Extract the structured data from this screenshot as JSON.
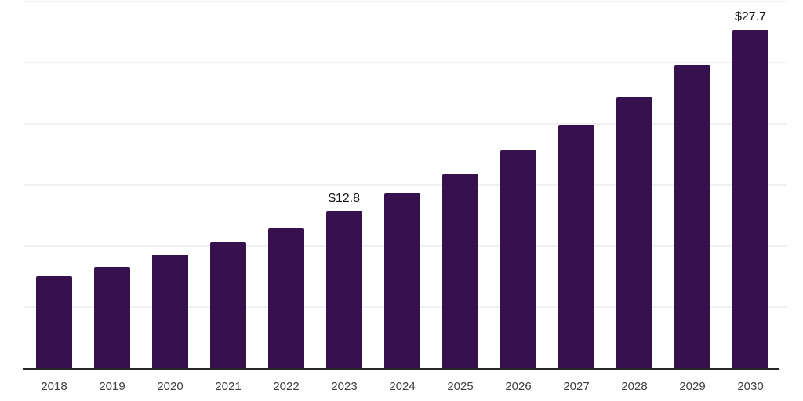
{
  "chart_data": {
    "type": "bar",
    "title": "",
    "categories": [
      "2018",
      "2019",
      "2020",
      "2021",
      "2022",
      "2023",
      "2024",
      "2025",
      "2026",
      "2027",
      "2028",
      "2029",
      "2030"
    ],
    "values": [
      7.5,
      8.3,
      9.3,
      10.3,
      11.5,
      12.8,
      14.3,
      15.9,
      17.8,
      19.9,
      22.2,
      24.8,
      27.7
    ],
    "value_labels": {
      "2023": "$12.8",
      "2030": "$27.7"
    },
    "ylim": [
      0,
      30
    ],
    "gridline_values": [
      5,
      10,
      15,
      20,
      25,
      30
    ],
    "grid": "horizontal-light",
    "legend": "none",
    "colors": {
      "bar": "#36114d",
      "gridline": "#f1f1f3",
      "axis_line": "#262626",
      "axis_label": "#3d3d3d",
      "value_label": "#141414",
      "background": "#ffffff"
    }
  }
}
